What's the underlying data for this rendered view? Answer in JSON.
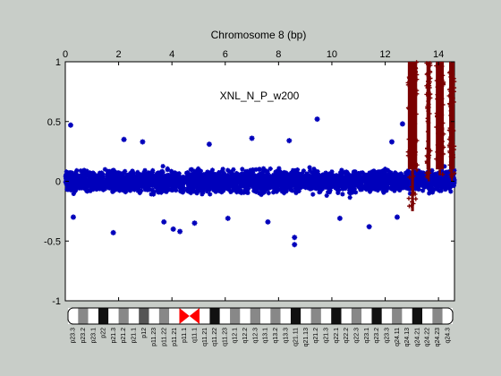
{
  "chart_data": {
    "type": "scatter",
    "title": "Chromosome 8 (bp)",
    "annotation": "XNL_N_P_w200",
    "xlim": [
      0,
      14.6
    ],
    "ylim": [
      -1,
      1
    ],
    "xticks": [
      "0",
      "2",
      "4",
      "6",
      "8",
      "10",
      "12",
      "14"
    ],
    "yticks": [
      "1",
      "0.5",
      "0",
      "-0.5",
      "-1"
    ],
    "grid": false,
    "baseline": 0,
    "series": [
      {
        "color": "#0000bb",
        "marker": "star",
        "description_note": "dense normal-copy points",
        "x_range": [
          0,
          14.6
        ],
        "gap": [
          4.45,
          4.55
        ],
        "band_core": [
          -0.2,
          0.2
        ],
        "outliers": [
          [
            0.2,
            0.47
          ],
          [
            0.3,
            -0.3
          ],
          [
            1.8,
            -0.43
          ],
          [
            2.2,
            0.35
          ],
          [
            2.9,
            0.33
          ],
          [
            3.7,
            -0.34
          ],
          [
            4.05,
            -0.4
          ],
          [
            4.3,
            -0.42
          ],
          [
            4.85,
            -0.35
          ],
          [
            5.4,
            0.31
          ],
          [
            6.1,
            -0.31
          ],
          [
            7.0,
            0.36
          ],
          [
            7.6,
            -0.34
          ],
          [
            8.4,
            0.34
          ],
          [
            8.6,
            -0.53
          ],
          [
            8.6,
            -0.47
          ],
          [
            9.45,
            0.52
          ],
          [
            10.3,
            -0.31
          ],
          [
            11.4,
            -0.38
          ],
          [
            12.25,
            0.33
          ],
          [
            12.45,
            -0.3
          ],
          [
            12.65,
            0.48
          ]
        ]
      },
      {
        "color": "#7a0000",
        "marker": "star",
        "description_note": "amplified region",
        "segments": [
          {
            "x": [
              12.85,
              13.2
            ],
            "y": [
              0.1,
              1.0
            ],
            "low": -0.25
          },
          {
            "x": [
              13.55,
              13.7
            ],
            "y": [
              0.1,
              1.0
            ],
            "low": 0.0
          },
          {
            "x": [
              13.9,
              14.2
            ],
            "y": [
              0.1,
              1.0
            ],
            "low": 0.05
          },
          {
            "x": [
              14.4,
              14.6
            ],
            "y": [
              0.1,
              1.0
            ],
            "low": 0.0
          }
        ]
      }
    ]
  },
  "ideogram": {
    "bands": [
      {
        "label": "p23.3",
        "stain": "white"
      },
      {
        "label": "p23.2",
        "stain": "gray"
      },
      {
        "label": "p23.1",
        "stain": "white"
      },
      {
        "label": "p22",
        "stain": "black"
      },
      {
        "label": "p21.3",
        "stain": "white"
      },
      {
        "label": "p21.2",
        "stain": "gray"
      },
      {
        "label": "p21.1",
        "stain": "white"
      },
      {
        "label": "p12",
        "stain": "darkgray"
      },
      {
        "label": "p11.23",
        "stain": "white"
      },
      {
        "label": "p11.22",
        "stain": "gray"
      },
      {
        "label": "p11.21",
        "stain": "white"
      },
      {
        "label": "p11.1",
        "stain": "centromere"
      },
      {
        "label": "q11.1",
        "stain": "centromere"
      },
      {
        "label": "q11.21",
        "stain": "white"
      },
      {
        "label": "q11.22",
        "stain": "black"
      },
      {
        "label": "q11.23",
        "stain": "white"
      },
      {
        "label": "q12.1",
        "stain": "gray"
      },
      {
        "label": "q12.2",
        "stain": "white"
      },
      {
        "label": "q12.3",
        "stain": "gray"
      },
      {
        "label": "q13.1",
        "stain": "white"
      },
      {
        "label": "q13.2",
        "stain": "gray"
      },
      {
        "label": "q13.3",
        "stain": "white"
      },
      {
        "label": "q21.11",
        "stain": "black"
      },
      {
        "label": "q21.13",
        "stain": "white"
      },
      {
        "label": "q21.2",
        "stain": "gray"
      },
      {
        "label": "q21.3",
        "stain": "white"
      },
      {
        "label": "q22.1",
        "stain": "black"
      },
      {
        "label": "q22.2",
        "stain": "white"
      },
      {
        "label": "q22.3",
        "stain": "gray"
      },
      {
        "label": "q23.1",
        "stain": "white"
      },
      {
        "label": "q23.2",
        "stain": "black"
      },
      {
        "label": "q23.3",
        "stain": "white"
      },
      {
        "label": "q24.11",
        "stain": "gray"
      },
      {
        "label": "q24.13",
        "stain": "white"
      },
      {
        "label": "q24.21",
        "stain": "black"
      },
      {
        "label": "q24.22",
        "stain": "white"
      },
      {
        "label": "q24.23",
        "stain": "gray"
      },
      {
        "label": "q24.3",
        "stain": "white"
      }
    ]
  }
}
